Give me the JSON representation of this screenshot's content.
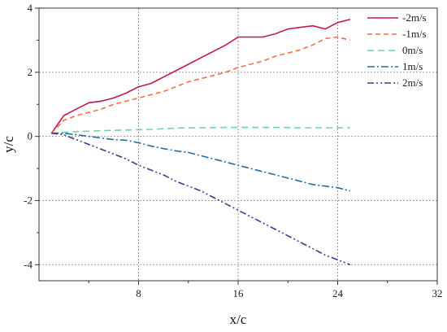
{
  "chart_data": {
    "type": "line",
    "xlabel": "x/c",
    "ylabel": "y/c",
    "xlim": [
      0,
      32
    ],
    "ylim": [
      -4.5,
      4
    ],
    "xticks": [
      8,
      16,
      24,
      32
    ],
    "yticks": [
      -4,
      -2,
      0,
      2,
      4
    ],
    "grid": true,
    "legend_position": "top-right",
    "series": [
      {
        "name": "-2m/s",
        "color": "#c8174a",
        "dash": "solid",
        "points": [
          [
            1,
            0.1
          ],
          [
            2,
            0.65
          ],
          [
            3,
            0.85
          ],
          [
            4,
            1.05
          ],
          [
            5,
            1.1
          ],
          [
            6,
            1.2
          ],
          [
            7,
            1.35
          ],
          [
            8,
            1.55
          ],
          [
            9,
            1.65
          ],
          [
            10,
            1.85
          ],
          [
            11,
            2.05
          ],
          [
            12,
            2.25
          ],
          [
            13,
            2.45
          ],
          [
            14,
            2.65
          ],
          [
            15,
            2.85
          ],
          [
            16,
            3.1
          ],
          [
            17,
            3.1
          ],
          [
            18,
            3.1
          ],
          [
            19,
            3.2
          ],
          [
            20,
            3.35
          ],
          [
            21,
            3.4
          ],
          [
            22,
            3.45
          ],
          [
            23,
            3.35
          ],
          [
            24,
            3.55
          ],
          [
            25,
            3.65
          ]
        ]
      },
      {
        "name": "-1m/s",
        "color": "#ff6a3d",
        "dash": "dashed",
        "points": [
          [
            1,
            0.1
          ],
          [
            2,
            0.5
          ],
          [
            3,
            0.65
          ],
          [
            4,
            0.75
          ],
          [
            5,
            0.85
          ],
          [
            6,
            1.0
          ],
          [
            7,
            1.1
          ],
          [
            8,
            1.2
          ],
          [
            9,
            1.3
          ],
          [
            10,
            1.4
          ],
          [
            11,
            1.55
          ],
          [
            12,
            1.7
          ],
          [
            13,
            1.8
          ],
          [
            14,
            1.9
          ],
          [
            15,
            2.0
          ],
          [
            16,
            2.15
          ],
          [
            17,
            2.25
          ],
          [
            18,
            2.35
          ],
          [
            19,
            2.5
          ],
          [
            20,
            2.6
          ],
          [
            21,
            2.7
          ],
          [
            22,
            2.85
          ],
          [
            23,
            3.05
          ],
          [
            24,
            3.1
          ],
          [
            25,
            3.0
          ]
        ]
      },
      {
        "name": "0m/s",
        "color": "#6fd3a8",
        "dash": "dashed-long",
        "points": [
          [
            1,
            0.1
          ],
          [
            3,
            0.15
          ],
          [
            5,
            0.18
          ],
          [
            7,
            0.2
          ],
          [
            9,
            0.22
          ],
          [
            11,
            0.26
          ],
          [
            13,
            0.27
          ],
          [
            15,
            0.28
          ],
          [
            17,
            0.28
          ],
          [
            19,
            0.28
          ],
          [
            21,
            0.27
          ],
          [
            23,
            0.27
          ],
          [
            25,
            0.27
          ]
        ]
      },
      {
        "name": "1m/s",
        "color": "#1e6fa3",
        "dash": "dash-dot",
        "points": [
          [
            1,
            0.1
          ],
          [
            2,
            0.1
          ],
          [
            3,
            0.05
          ],
          [
            4,
            0.0
          ],
          [
            5,
            -0.05
          ],
          [
            6,
            -0.1
          ],
          [
            7,
            -0.12
          ],
          [
            8,
            -0.2
          ],
          [
            9,
            -0.3
          ],
          [
            10,
            -0.38
          ],
          [
            11,
            -0.45
          ],
          [
            12,
            -0.5
          ],
          [
            13,
            -0.6
          ],
          [
            14,
            -0.7
          ],
          [
            15,
            -0.8
          ],
          [
            16,
            -0.9
          ],
          [
            17,
            -1.0
          ],
          [
            18,
            -1.1
          ],
          [
            19,
            -1.2
          ],
          [
            20,
            -1.3
          ],
          [
            21,
            -1.4
          ],
          [
            22,
            -1.5
          ],
          [
            23,
            -1.55
          ],
          [
            24,
            -1.6
          ],
          [
            25,
            -1.7
          ]
        ]
      },
      {
        "name": "2m/s",
        "color": "#3d3b8f",
        "dash": "dash-dot-dot",
        "points": [
          [
            1,
            0.1
          ],
          [
            2,
            0.05
          ],
          [
            3,
            -0.1
          ],
          [
            4,
            -0.25
          ],
          [
            5,
            -0.4
          ],
          [
            6,
            -0.55
          ],
          [
            7,
            -0.7
          ],
          [
            8,
            -0.9
          ],
          [
            9,
            -1.05
          ],
          [
            10,
            -1.2
          ],
          [
            11,
            -1.4
          ],
          [
            12,
            -1.55
          ],
          [
            13,
            -1.7
          ],
          [
            14,
            -1.9
          ],
          [
            15,
            -2.1
          ],
          [
            16,
            -2.3
          ],
          [
            17,
            -2.5
          ],
          [
            18,
            -2.7
          ],
          [
            19,
            -2.9
          ],
          [
            20,
            -3.1
          ],
          [
            21,
            -3.3
          ],
          [
            22,
            -3.5
          ],
          [
            23,
            -3.7
          ],
          [
            24,
            -3.85
          ],
          [
            25,
            -4.0
          ]
        ]
      }
    ]
  }
}
